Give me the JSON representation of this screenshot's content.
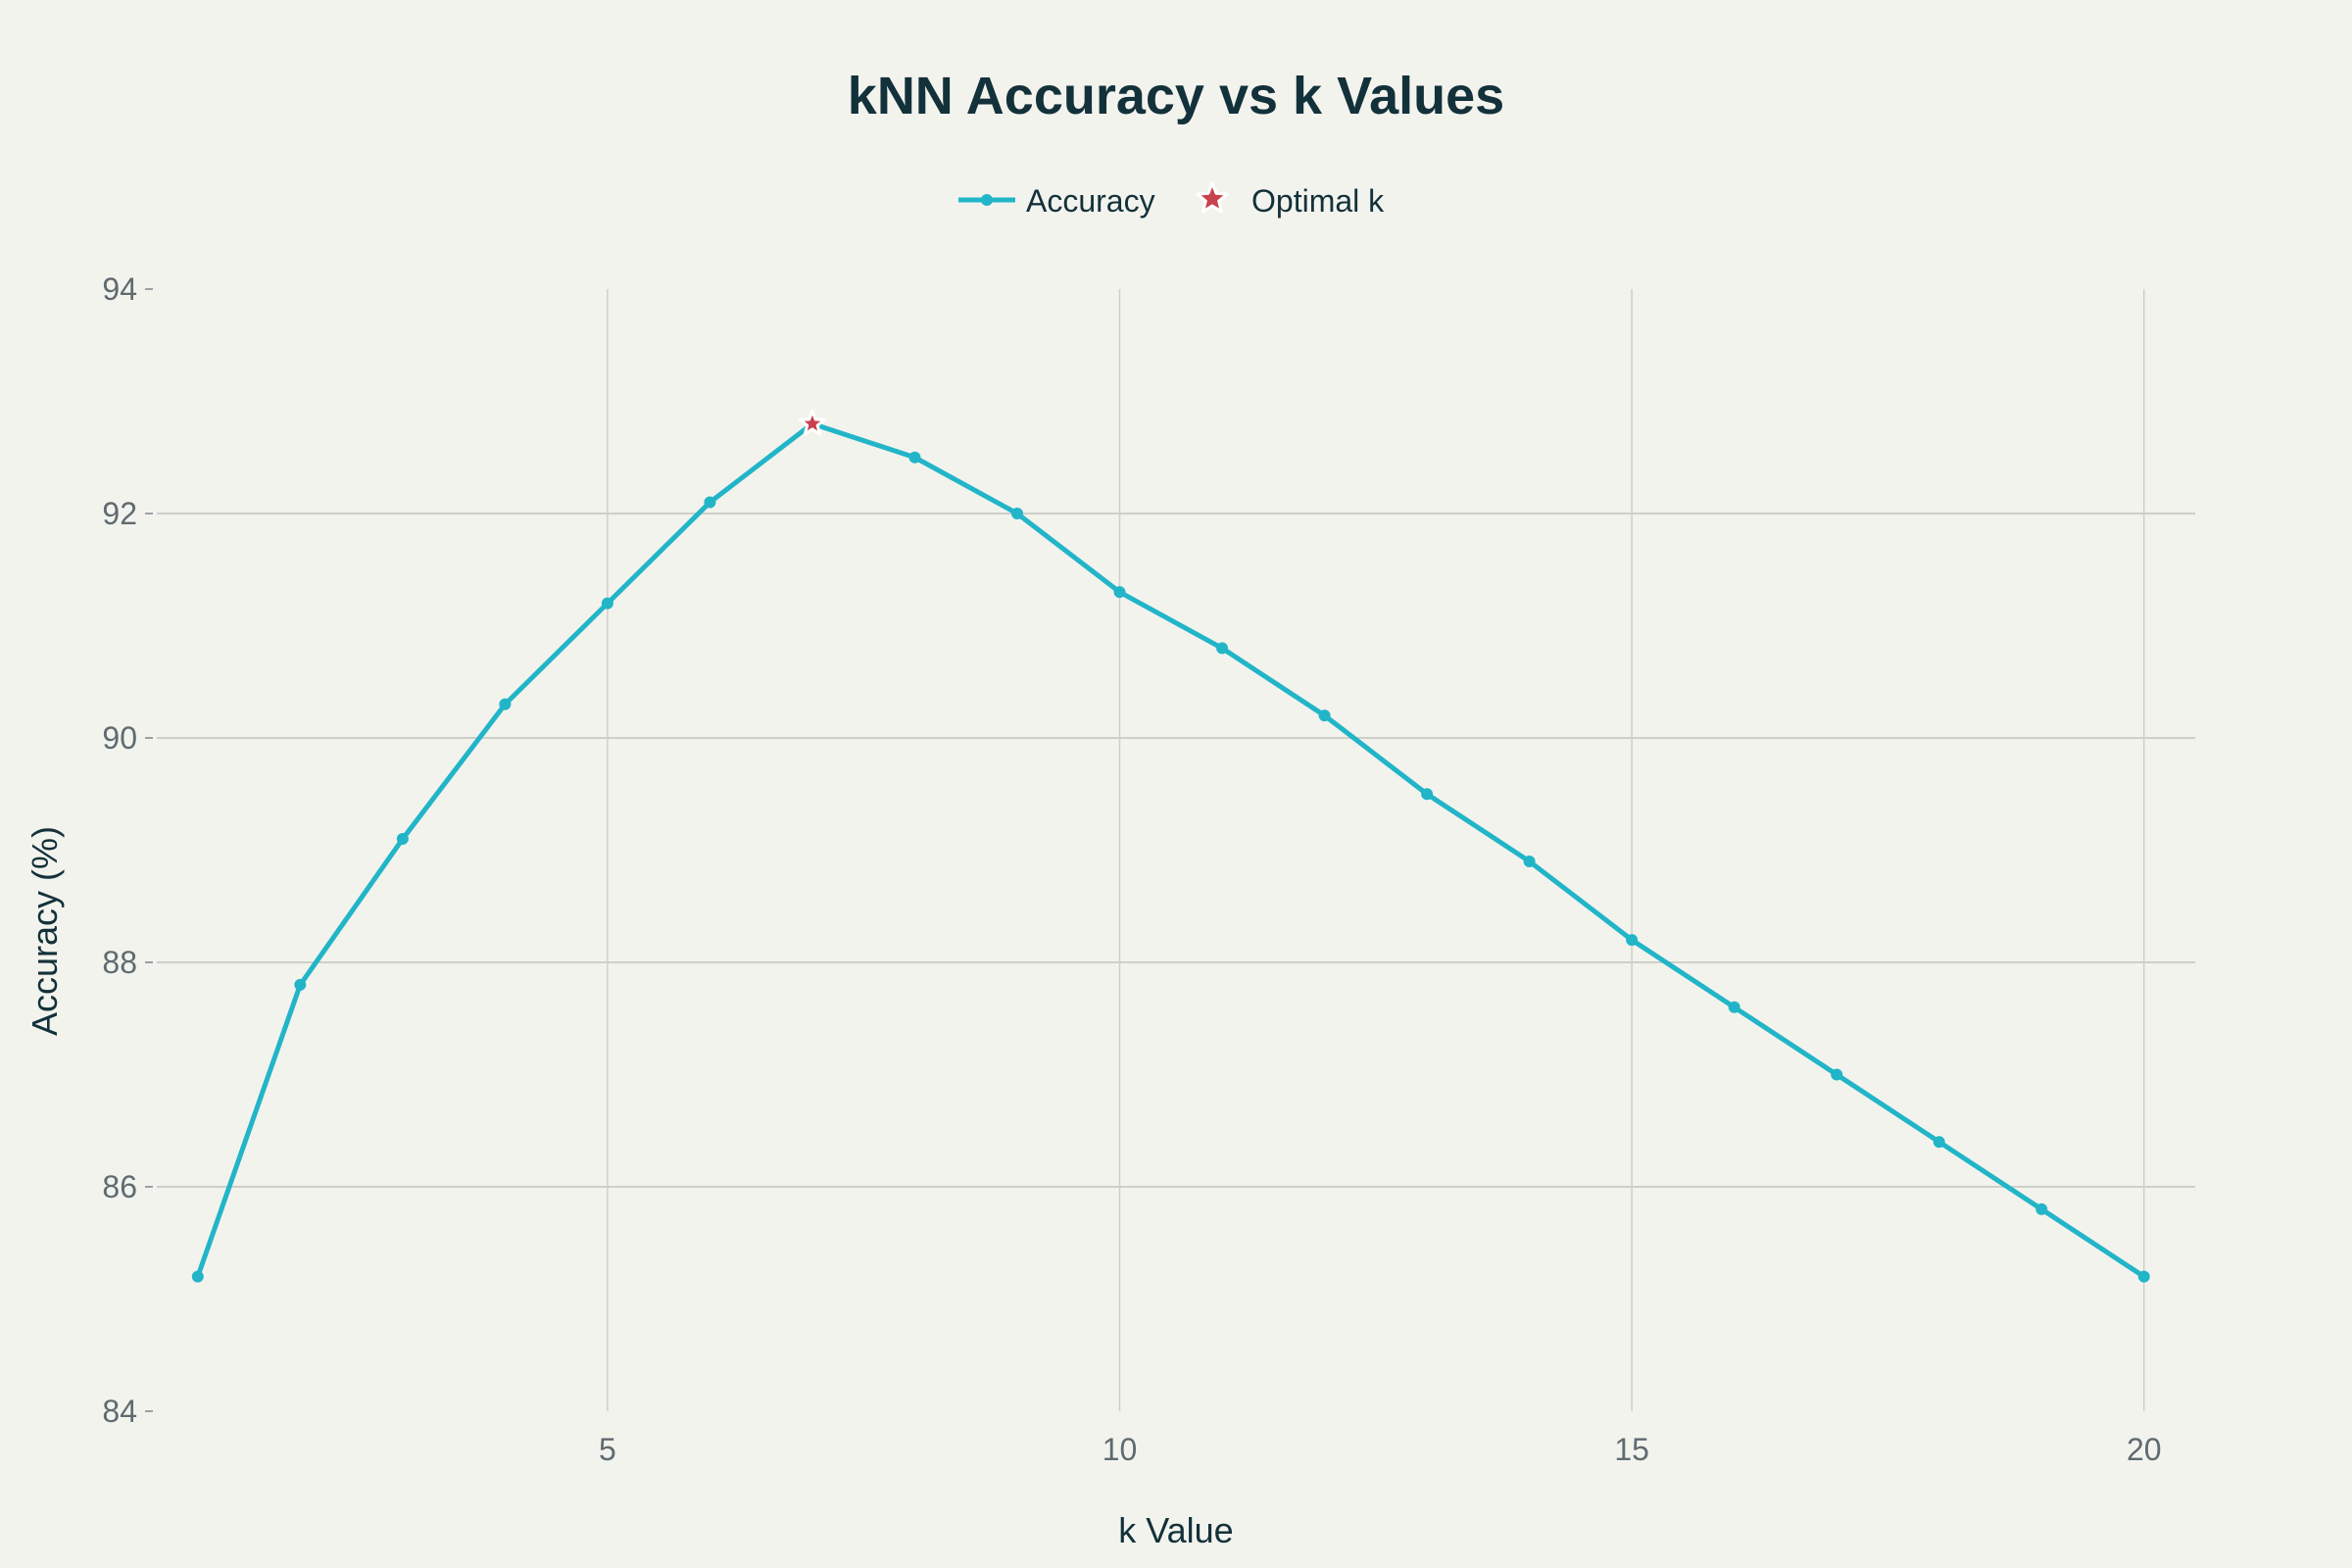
{
  "chart_data": {
    "type": "line",
    "title": "kNN Accuracy vs k Values",
    "xlabel": "k Value",
    "ylabel": "Accuracy (%)",
    "x": [
      1,
      2,
      3,
      4,
      5,
      6,
      7,
      8,
      9,
      10,
      11,
      12,
      13,
      14,
      15,
      16,
      17,
      18,
      19,
      20
    ],
    "series": [
      {
        "name": "Accuracy",
        "values": [
          85.2,
          87.8,
          89.1,
          90.3,
          91.2,
          92.1,
          92.8,
          92.5,
          92.0,
          91.3,
          90.8,
          90.2,
          89.5,
          88.9,
          88.2,
          87.6,
          87.0,
          86.4,
          85.8,
          85.2
        ],
        "color": "#22b5c8"
      }
    ],
    "highlight": {
      "name": "Optimal k",
      "x": 7,
      "y": 92.8,
      "color": "#c8424d",
      "marker": "star-icon"
    },
    "xlim": [
      0.6,
      20.5
    ],
    "ylim": [
      84,
      94
    ],
    "xticks": [
      5,
      10,
      15,
      20
    ],
    "yticks": [
      84,
      86,
      88,
      90,
      92,
      94
    ],
    "xtick_labels": [
      "5",
      "10",
      "15",
      "20"
    ],
    "ytick_labels": [
      "84",
      "86",
      "88",
      "90",
      "92",
      "94"
    ],
    "grid": true,
    "legend_position": "top-center",
    "colors": {
      "background": "#f3f3ee",
      "grid": "#cfcfc9",
      "title": "#13313a",
      "tick": "#5f6b70"
    }
  }
}
